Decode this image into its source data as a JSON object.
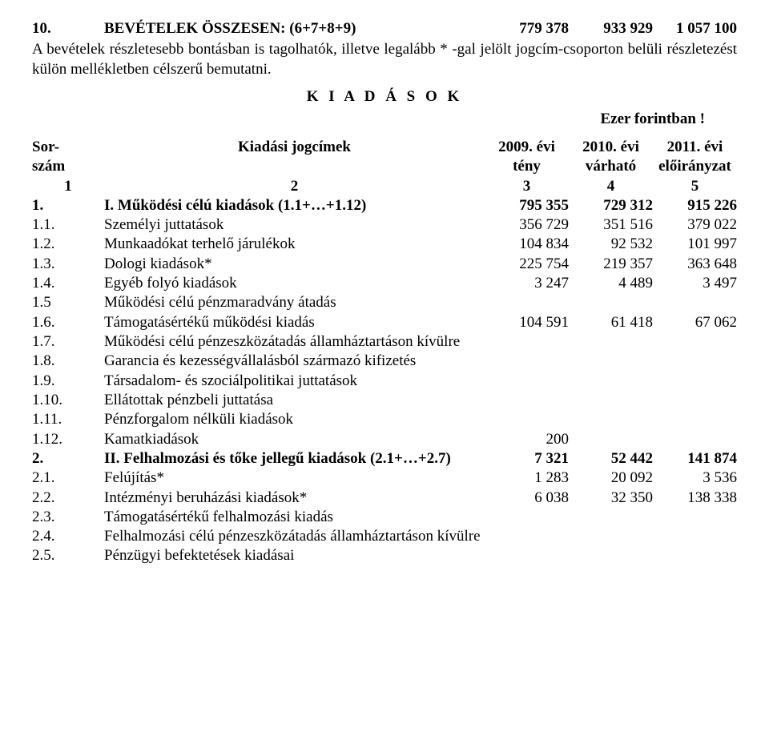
{
  "top_total": {
    "num": "10.",
    "label": "BEVÉTELEK ÖSSZESEN: (6+7+8+9)",
    "v1": "779 378",
    "v2": "933 929",
    "v3": "1 057 100"
  },
  "paragraph": "A bevételek részletesebb bontásban is tagolhatók, illetve legalább  *  -gal jelölt jogcím-csoporton belüli részletezést külön mellékletben célszerű bemutatni.",
  "section_title": "K I A D Á S O K",
  "unit_note": "Ezer forintban !",
  "header": {
    "c1a": "Sor-",
    "c1b": "szám",
    "c2": "Kiadási jogcímek",
    "c3a": "2009. évi",
    "c3b": "tény",
    "c4a": "2010. évi",
    "c4b": "várható",
    "c5a": "2011. évi",
    "c5b": "előirányzat",
    "r1": "1",
    "r2": "2",
    "r3": "3",
    "r4": "4",
    "r5": "5"
  },
  "rows": [
    {
      "num": "1.",
      "label": "I. Működési célú kiadások (1.1+…+1.12)",
      "v1": "795 355",
      "v2": "729 312",
      "v3": "915 226",
      "bold": true
    },
    {
      "num": "1.1.",
      "label": "Személyi  juttatások",
      "v1": "356 729",
      "v2": "351 516",
      "v3": "379 022"
    },
    {
      "num": "1.2.",
      "label": "Munkaadókat terhelő járulékok",
      "v1": "104 834",
      "v2": "92 532",
      "v3": "101 997"
    },
    {
      "num": "1.3.",
      "label": "Dologi  kiadások*",
      "v1": "225 754",
      "v2": "219 357",
      "v3": "363 648"
    },
    {
      "num": "1.4.",
      "label": "Egyéb folyó kiadások",
      "v1": "3 247",
      "v2": "4 489",
      "v3": "3 497"
    },
    {
      "num": "1.5",
      "label": "Működési célú pénzmaradvány átadás",
      "v1": "",
      "v2": "",
      "v3": ""
    },
    {
      "num": "1.6.",
      "label": "Támogatásértékű működési kiadás",
      "v1": "104 591",
      "v2": "61 418",
      "v3": "67 062"
    },
    {
      "num": "1.7.",
      "label": "Működési célú pénzeszközátadás államháztartáson kívülre",
      "v1": "",
      "v2": "",
      "v3": ""
    },
    {
      "num": "1.8.",
      "label": "Garancia és kezességvállalásból származó kifizetés",
      "v1": "",
      "v2": "",
      "v3": ""
    },
    {
      "num": "1.9.",
      "label": "Társadalom- és szociálpolitikai juttatások",
      "v1": "",
      "v2": "",
      "v3": ""
    },
    {
      "num": "1.10.",
      "label": "Ellátottak pénzbeli juttatása",
      "v1": "",
      "v2": "",
      "v3": ""
    },
    {
      "num": "1.11.",
      "label": "Pénzforgalom nélküli kiadások",
      "v1": "",
      "v2": "",
      "v3": ""
    },
    {
      "num": "1.12.",
      "label": "Kamatkiadások",
      "v1": "200",
      "v2": "",
      "v3": ""
    },
    {
      "num": "2.",
      "label": "II. Felhalmozási és tőke jellegű kiadások (2.1+…+2.7)",
      "v1": "7 321",
      "v2": "52 442",
      "v3": "141 874",
      "bold": true
    },
    {
      "num": "2.1.",
      "label": "Felújítás*",
      "v1": "1 283",
      "v2": "20 092",
      "v3": "3 536"
    },
    {
      "num": "2.2.",
      "label": "Intézményi beruházási kiadások*",
      "v1": "6 038",
      "v2": "32 350",
      "v3": "138 338"
    },
    {
      "num": "2.3.",
      "label": "Támogatásértékű felhalmozási kiadás",
      "v1": "",
      "v2": "",
      "v3": ""
    },
    {
      "num": "2.4.",
      "label": "Felhalmozási célú pénzeszközátadás államháztartáson kívülre",
      "v1": "",
      "v2": "",
      "v3": ""
    },
    {
      "num": "2.5.",
      "label": "Pénzügyi befektetések kiadásai",
      "v1": "",
      "v2": "",
      "v3": ""
    }
  ]
}
